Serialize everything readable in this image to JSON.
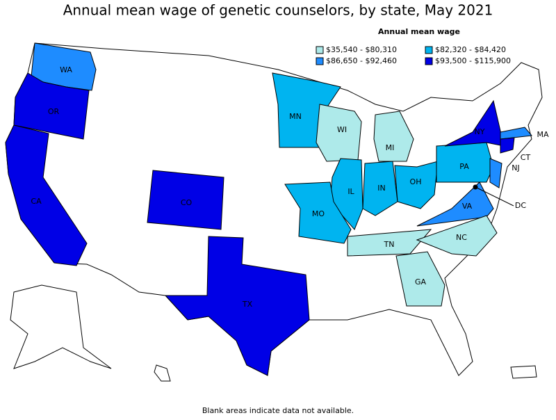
{
  "title": "Annual mean wage of genetic counselors, by state, May 2021",
  "legend": {
    "title": "Annual mean wage",
    "items": [
      {
        "label": "$35,540 - $80,310",
        "color": "#aeeaea"
      },
      {
        "label": "$82,320 - $84,420",
        "color": "#00b4f0"
      },
      {
        "label": "$86,650 - $92,460",
        "color": "#1e8cff"
      },
      {
        "label": "$93,500 - $115,900",
        "color": "#0000e6"
      }
    ]
  },
  "states": [
    {
      "label": "WA",
      "color": "#1e8cff"
    },
    {
      "label": "OR",
      "color": "#0000e6"
    },
    {
      "label": "CA",
      "color": "#0000e6"
    },
    {
      "label": "CO",
      "color": "#0000e6"
    },
    {
      "label": "TX",
      "color": "#0000e6"
    },
    {
      "label": "MN",
      "color": "#00b4f0"
    },
    {
      "label": "WI",
      "color": "#aeeaea"
    },
    {
      "label": "MI",
      "color": "#aeeaea"
    },
    {
      "label": "IL",
      "color": "#00b4f0"
    },
    {
      "label": "IN",
      "color": "#00b4f0"
    },
    {
      "label": "OH",
      "color": "#00b4f0"
    },
    {
      "label": "PA",
      "color": "#00b4f0"
    },
    {
      "label": "NY",
      "color": "#0000e6"
    },
    {
      "label": "MA",
      "color": "#1e8cff"
    },
    {
      "label": "CT",
      "color": "#0000e6"
    },
    {
      "label": "NJ",
      "color": "#1e8cff"
    },
    {
      "label": "VA",
      "color": "#1e8cff"
    },
    {
      "label": "DC",
      "color": "#000000"
    },
    {
      "label": "MO",
      "color": "#00b4f0"
    },
    {
      "label": "TN",
      "color": "#aeeaea"
    },
    {
      "label": "NC",
      "color": "#aeeaea"
    },
    {
      "label": "GA",
      "color": "#aeeaea"
    }
  ],
  "note": "Blank areas indicate data not available."
}
